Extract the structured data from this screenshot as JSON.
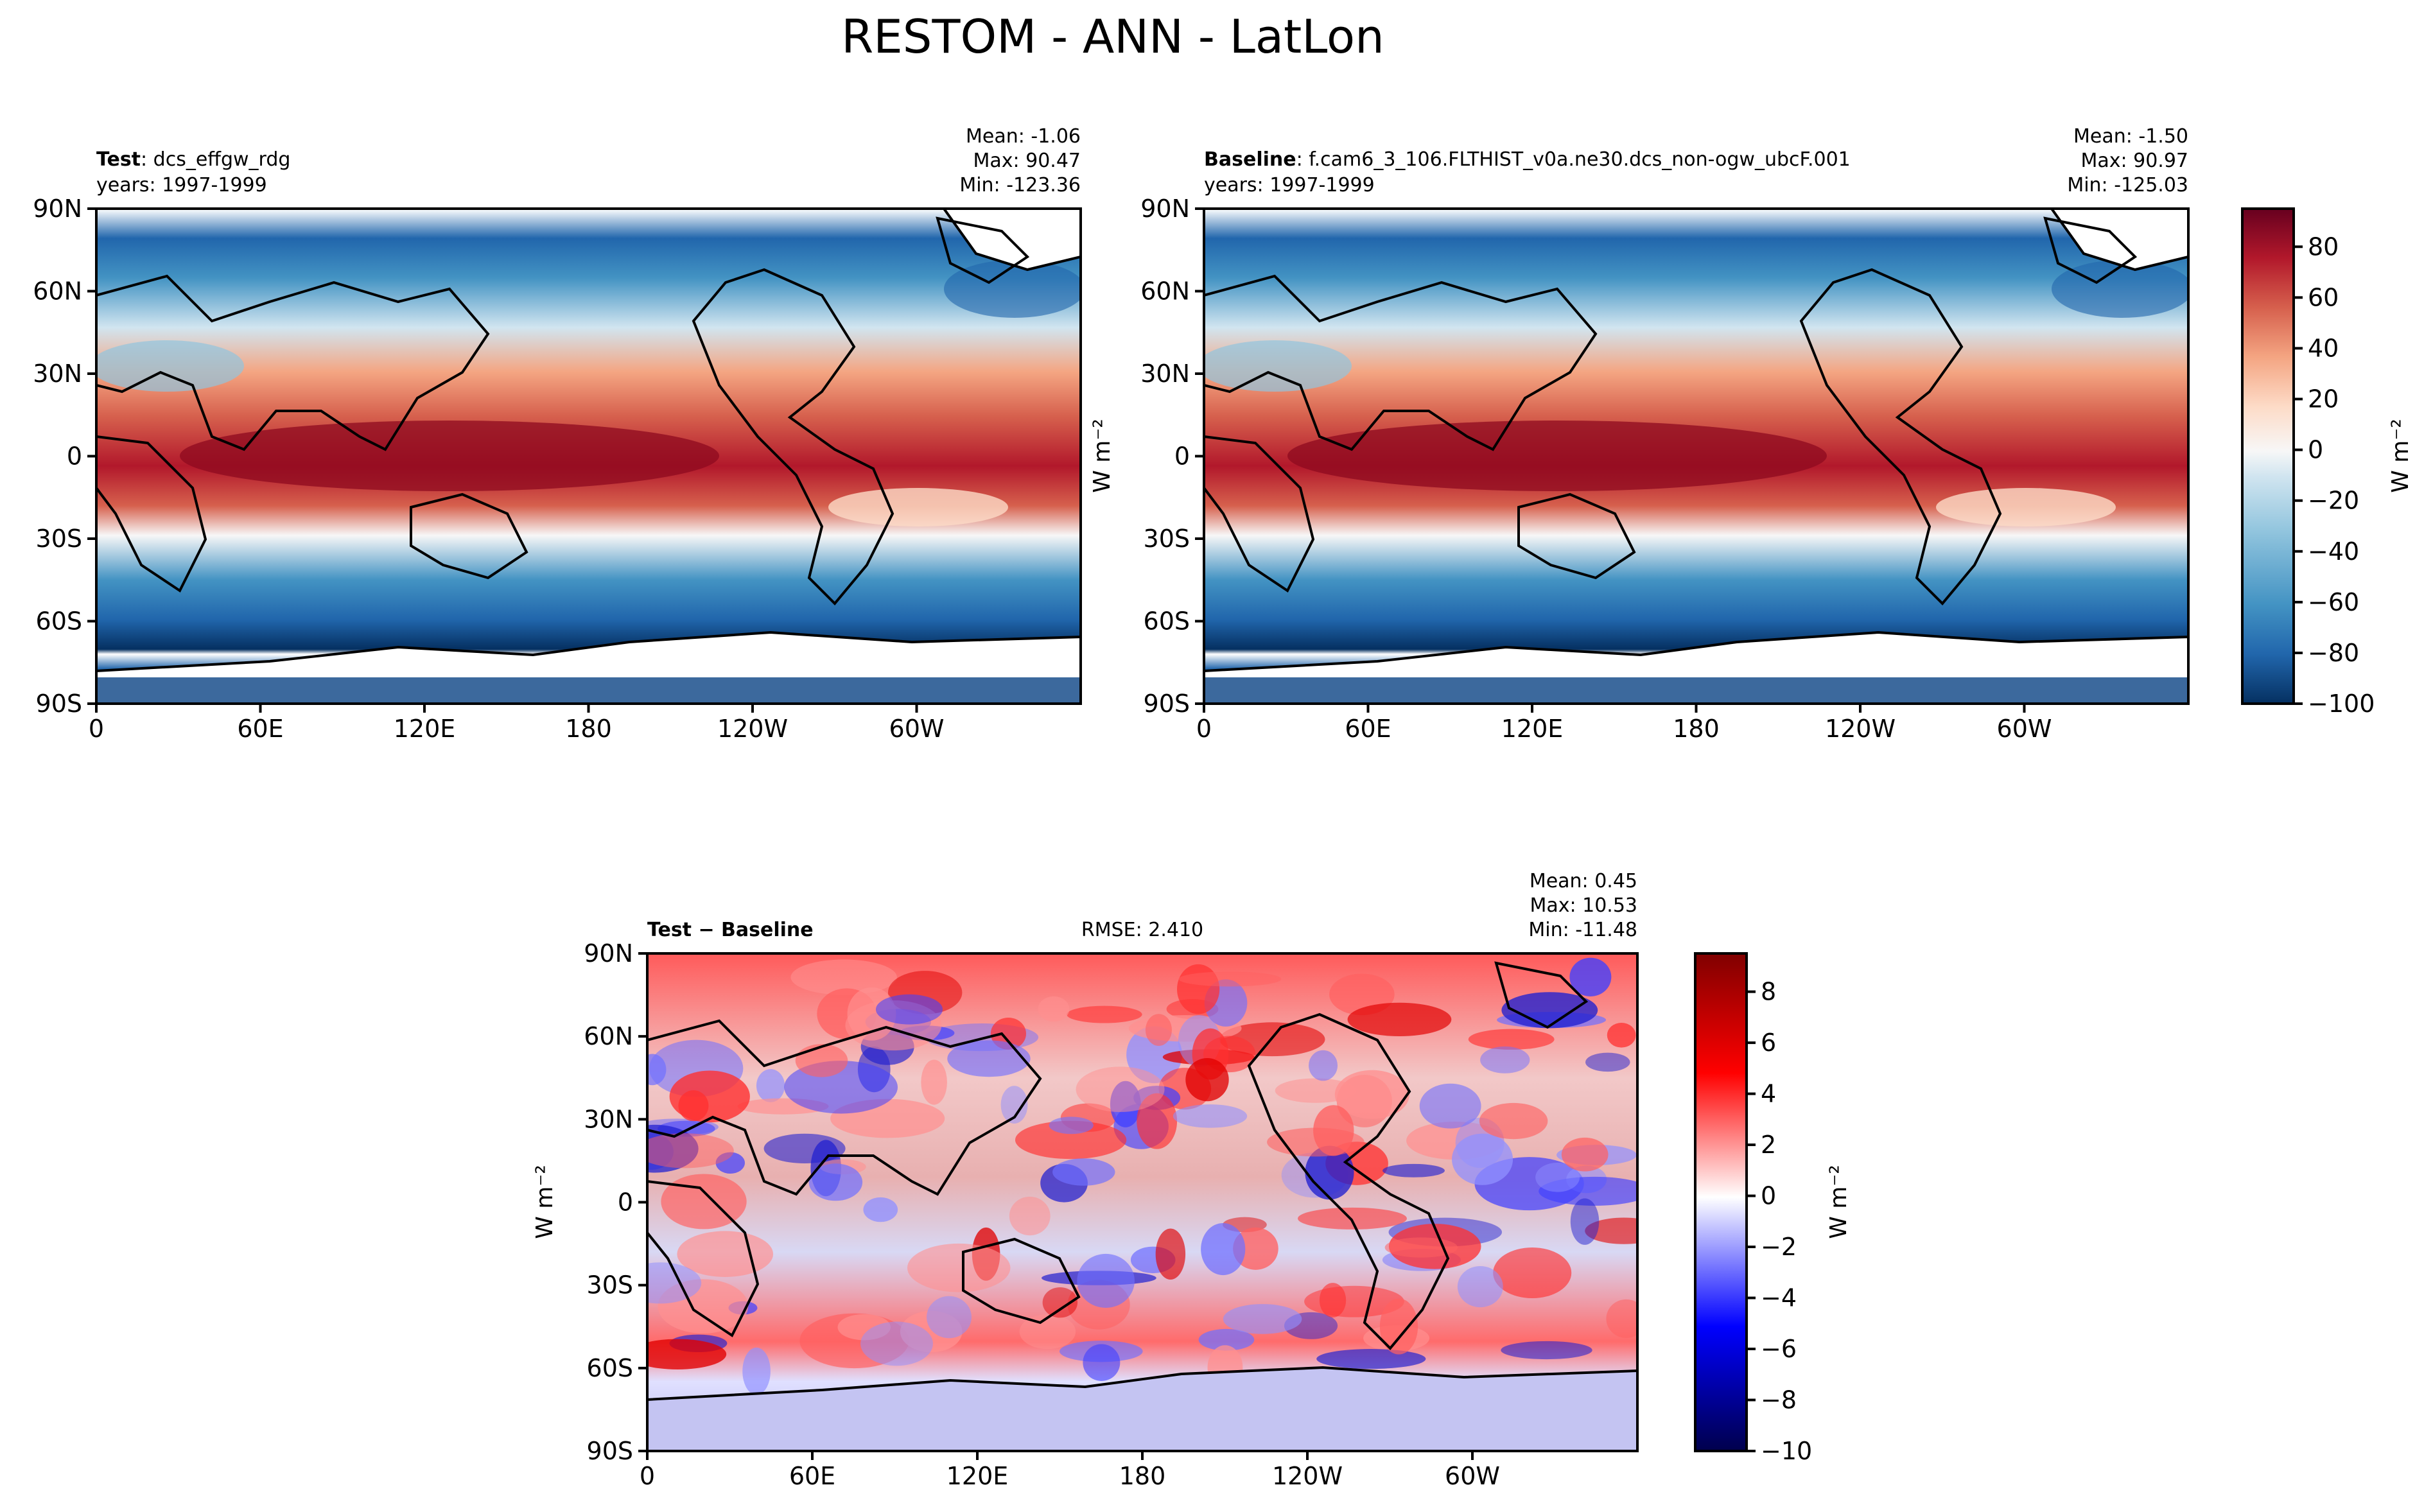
{
  "figure": {
    "title": "RESTOM - ANN - LatLon"
  },
  "lat_ticks": [
    "90N",
    "60N",
    "30N",
    "0",
    "30S",
    "60S",
    "90S"
  ],
  "lon_ticks": [
    "0",
    "60E",
    "120E",
    "180",
    "120W",
    "60W"
  ],
  "chart_data": [
    {
      "type": "heatmap",
      "panel": "test",
      "label_bold": "Test",
      "label_rest": ": dcs_effgw_rdg",
      "years": "years: 1997-1999",
      "stats": {
        "mean": "Mean: -1.06",
        "max": "Max: 90.47",
        "min": "Min: -123.36"
      },
      "xlim": [
        0,
        360
      ],
      "ylim": [
        -90,
        90
      ],
      "colormap": "RdBu_r",
      "colorbar": {
        "range": [
          -100,
          95
        ],
        "ticks": [
          -100,
          -80,
          -60,
          -40,
          -20,
          0,
          20,
          40,
          60,
          80
        ],
        "tick_labels": [
          "−100",
          "−80",
          "−60",
          "−40",
          "−20",
          "0",
          "20",
          "40",
          "60",
          "80"
        ]
      },
      "units_label": "W m⁻²"
    },
    {
      "type": "heatmap",
      "panel": "baseline",
      "label_bold": "Baseline",
      "label_rest": ": f.cam6_3_106.FLTHIST_v0a.ne30.dcs_non-ogw_ubcF.001",
      "years": "years: 1997-1999",
      "stats": {
        "mean": "Mean: -1.50",
        "max": "Max: 90.97",
        "min": "Min: -125.03"
      },
      "xlim": [
        0,
        360
      ],
      "ylim": [
        -90,
        90
      ],
      "colormap": "RdBu_r",
      "units_label": "W m⁻²"
    },
    {
      "type": "heatmap",
      "panel": "diff",
      "label_bold": "Test − Baseline",
      "rmse": "RMSE: 2.410",
      "stats": {
        "mean": "Mean:  0.45",
        "max": "Max: 10.53",
        "min": "Min: -11.48"
      },
      "xlim": [
        0,
        360
      ],
      "ylim": [
        -90,
        90
      ],
      "colormap": "seismic",
      "colorbar": {
        "range": [
          -10,
          9.5
        ],
        "ticks": [
          -10,
          -8,
          -6,
          -4,
          -2,
          0,
          2,
          4,
          6,
          8
        ],
        "tick_labels": [
          "−10",
          "−8",
          "−6",
          "−4",
          "−2",
          "0",
          "2",
          "4",
          "6",
          "8"
        ]
      },
      "units_label": "W m⁻²"
    }
  ],
  "colors": {
    "dark_red": "#67001f",
    "white": "#f7f7f7",
    "dark_blue": "#053061",
    "seismic_red": "#800000",
    "seismic_blue": "#00004c"
  }
}
